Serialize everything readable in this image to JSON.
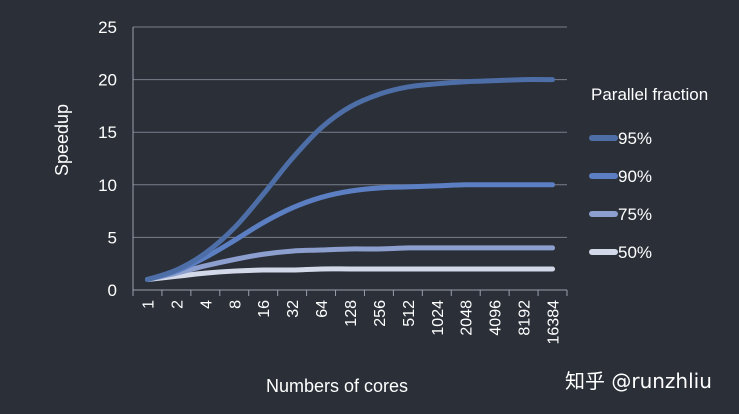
{
  "chart_data": {
    "type": "line",
    "title": "",
    "xlabel": "Numbers of cores",
    "ylabel": "Speedup",
    "categories": [
      "1",
      "2",
      "4",
      "8",
      "16",
      "32",
      "64",
      "128",
      "256",
      "512",
      "1024",
      "2048",
      "4096",
      "8192",
      "16384"
    ],
    "ylim": [
      0,
      25
    ],
    "yticks": [
      "0",
      "5",
      "10",
      "15",
      "20",
      "25"
    ],
    "grid": "horizontal",
    "legend_title": "Parallel fraction",
    "legend_position": "right",
    "series": [
      {
        "name": "95%",
        "color": "#4d6ea6",
        "values": [
          1.0,
          1.9,
          3.5,
          5.9,
          9.1,
          12.5,
          15.4,
          17.4,
          18.6,
          19.3,
          19.6,
          19.8,
          19.9,
          20.0,
          20.0
        ]
      },
      {
        "name": "90%",
        "color": "#5b7fc2",
        "values": [
          1.0,
          1.8,
          3.1,
          4.7,
          6.4,
          7.8,
          8.8,
          9.4,
          9.7,
          9.8,
          9.9,
          10.0,
          10.0,
          10.0,
          10.0
        ]
      },
      {
        "name": "75%",
        "color": "#8c9fcf",
        "values": [
          1.0,
          1.6,
          2.3,
          2.9,
          3.4,
          3.7,
          3.8,
          3.9,
          3.9,
          4.0,
          4.0,
          4.0,
          4.0,
          4.0,
          4.0
        ]
      },
      {
        "name": "50%",
        "color": "#d4d9ea",
        "values": [
          1.0,
          1.3,
          1.6,
          1.8,
          1.9,
          1.9,
          2.0,
          2.0,
          2.0,
          2.0,
          2.0,
          2.0,
          2.0,
          2.0,
          2.0
        ]
      }
    ]
  },
  "watermark": "知乎 @runzhliu"
}
